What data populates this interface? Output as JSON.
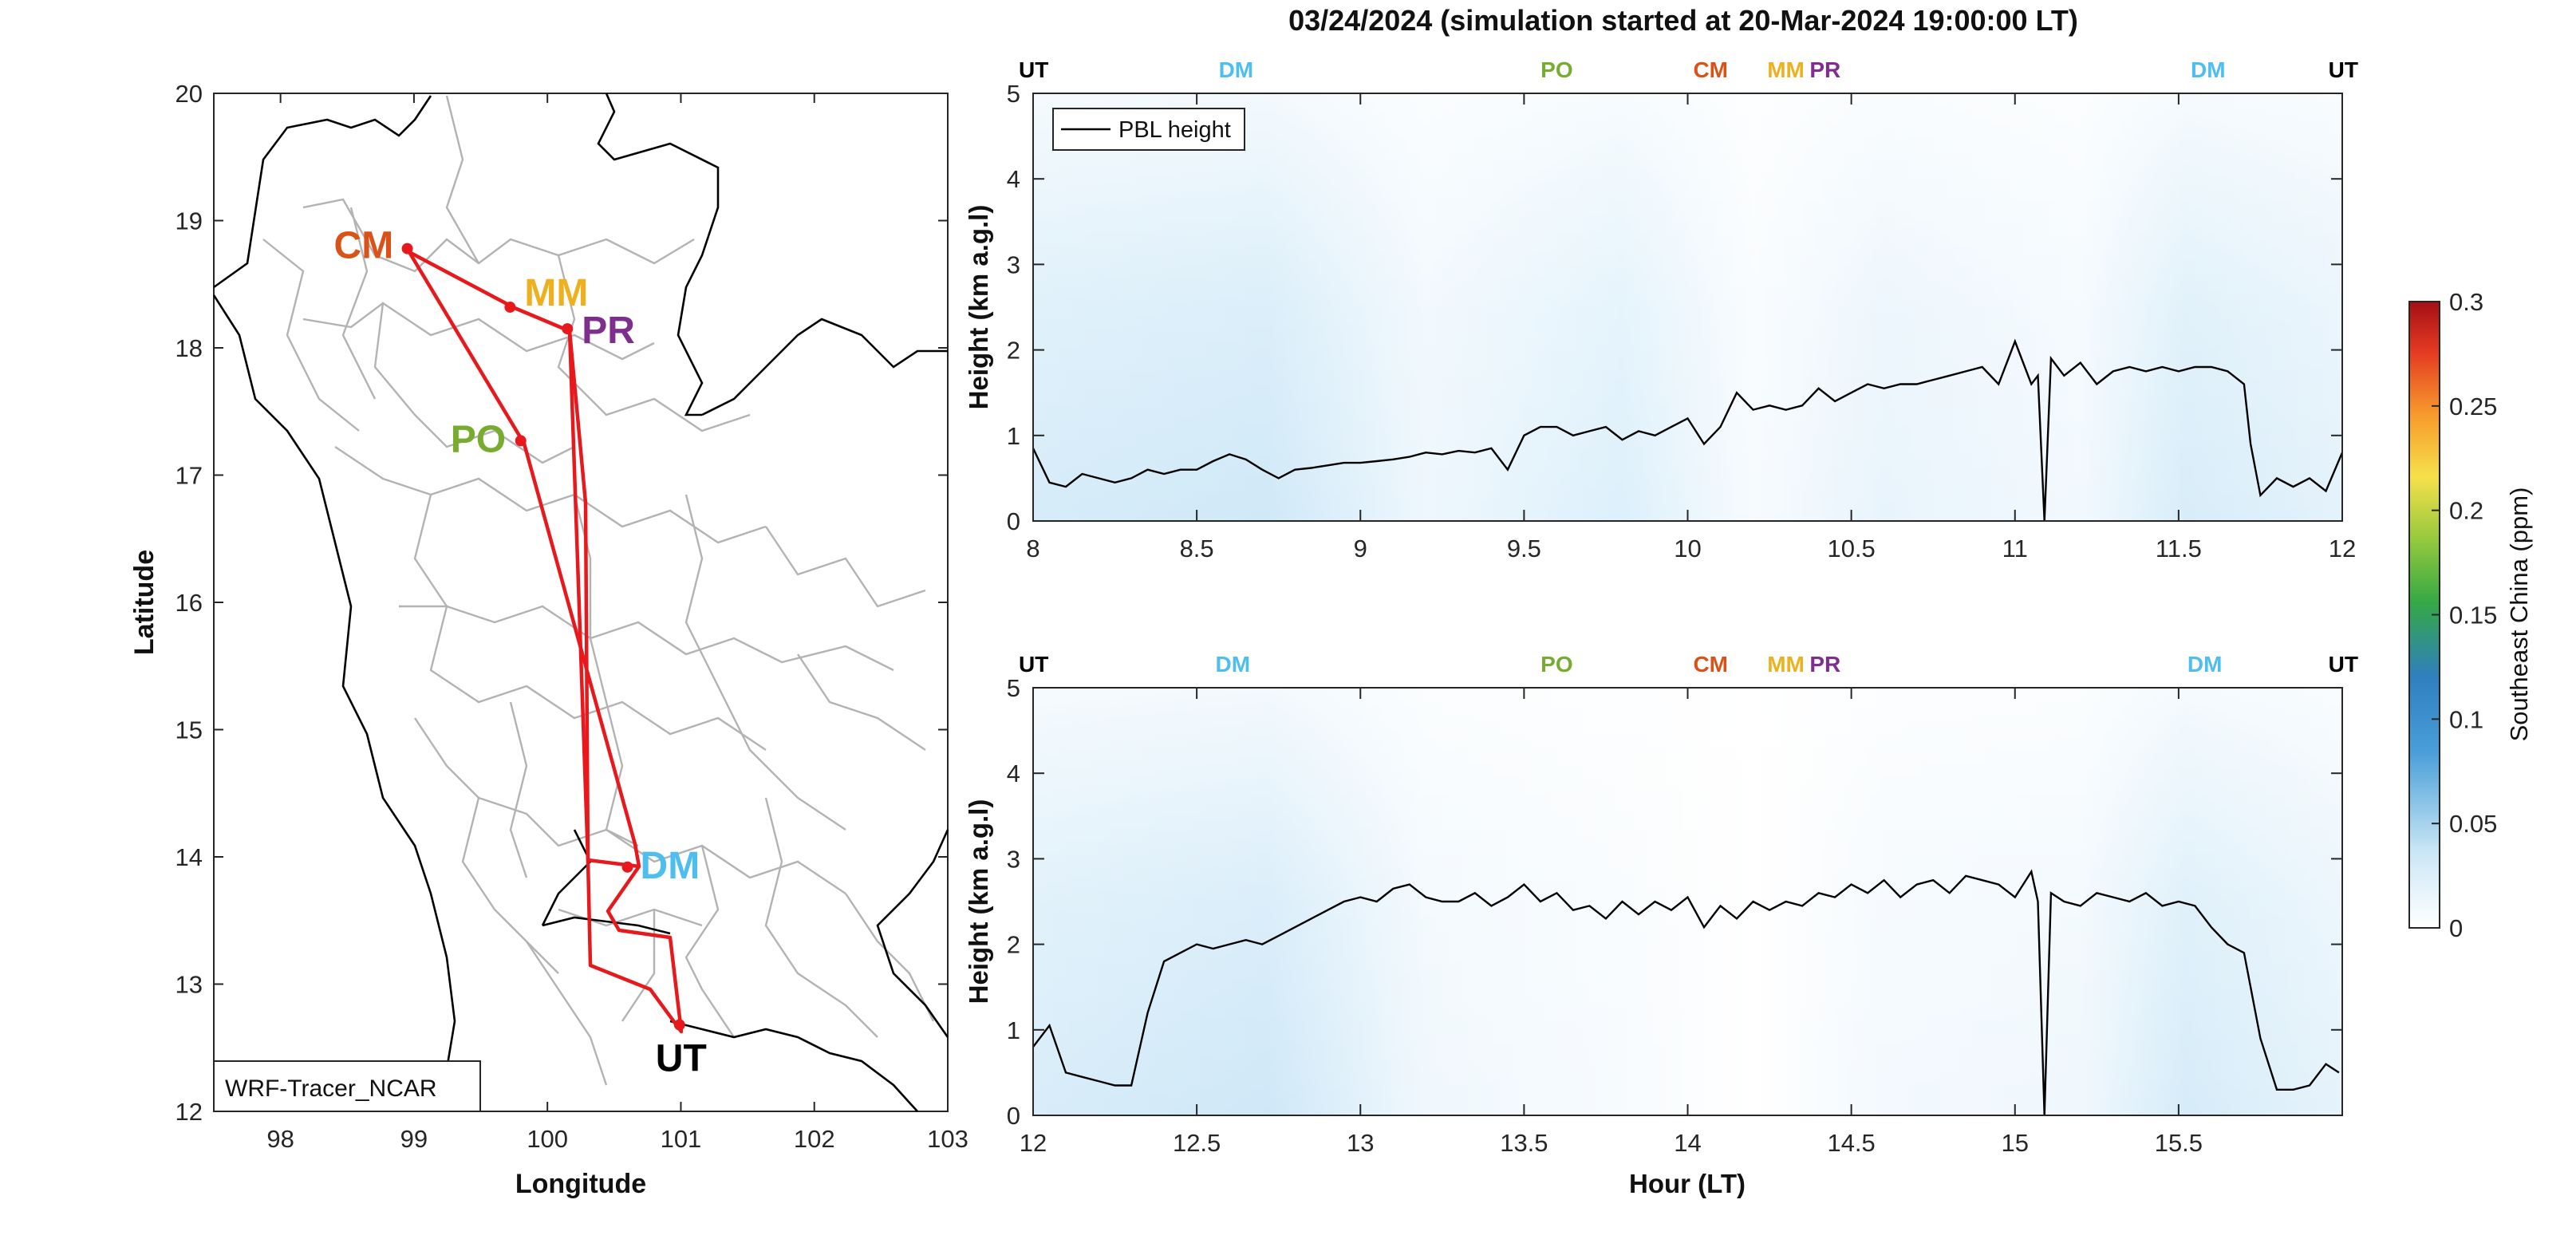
{
  "figure": {
    "title": "03/24/2024 (simulation started at 20-Mar-2024 19:00:00 LT)"
  },
  "map": {
    "xlabel": "Longitude",
    "ylabel": "Latitude",
    "xticks": [
      "98",
      "99",
      "100",
      "101",
      "102",
      "103"
    ],
    "yticks": [
      "12",
      "13",
      "14",
      "15",
      "16",
      "17",
      "18",
      "19",
      "20"
    ],
    "model_label": "WRF-Tracer_NCAR",
    "route_color": "#e8191c",
    "border_color": "#000000",
    "province_color": "#b3b3b3",
    "sites": [
      {
        "code": "CM",
        "lon": 98.95,
        "lat": 18.78,
        "color": "#d95319"
      },
      {
        "code": "MM",
        "lon": 99.72,
        "lat": 18.32,
        "color": "#edb120"
      },
      {
        "code": "PR",
        "lon": 100.15,
        "lat": 18.15,
        "color": "#7e2f8e"
      },
      {
        "code": "PO",
        "lon": 99.8,
        "lat": 17.27,
        "color": "#77ac30"
      },
      {
        "code": "DM",
        "lon": 100.6,
        "lat": 13.92,
        "color": "#4dbeee"
      },
      {
        "code": "UT",
        "lon": 100.99,
        "lat": 12.68,
        "color": "#000000"
      }
    ]
  },
  "panels": [
    {
      "xticks": [
        "8",
        "8.5",
        "9",
        "9.5",
        "10",
        "10.5",
        "11",
        "11.5",
        "12"
      ],
      "yticks": [
        "0",
        "1",
        "2",
        "3",
        "4",
        "5"
      ],
      "ylabel": "Height (km a.g.l)",
      "xlabel": "",
      "legend": "PBL height",
      "site_markers": [
        {
          "code": "UT",
          "hour": 8.0,
          "color": "#000000"
        },
        {
          "code": "DM",
          "hour": 8.62,
          "color": "#4dbeee"
        },
        {
          "code": "PO",
          "hour": 9.6,
          "color": "#77ac30"
        },
        {
          "code": "CM",
          "hour": 10.07,
          "color": "#d95319"
        },
        {
          "code": "MM",
          "hour": 10.3,
          "color": "#edb120"
        },
        {
          "code": "PR",
          "hour": 10.42,
          "color": "#7e2f8e"
        },
        {
          "code": "DM",
          "hour": 11.59,
          "color": "#4dbeee"
        },
        {
          "code": "UT",
          "hour": 11.96,
          "color": "#000000"
        }
      ]
    },
    {
      "xticks": [
        "12",
        "12.5",
        "13",
        "13.5",
        "14",
        "14.5",
        "15",
        "15.5"
      ],
      "yticks": [
        "0",
        "1",
        "2",
        "3",
        "4",
        "5"
      ],
      "ylabel": "Height (km a.g.l)",
      "xlabel": "Hour (LT)",
      "legend": "",
      "site_markers": [
        {
          "code": "UT",
          "hour": 12.0,
          "color": "#000000"
        },
        {
          "code": "DM",
          "hour": 12.61,
          "color": "#4dbeee"
        },
        {
          "code": "PO",
          "hour": 13.6,
          "color": "#77ac30"
        },
        {
          "code": "CM",
          "hour": 14.07,
          "color": "#d95319"
        },
        {
          "code": "MM",
          "hour": 14.3,
          "color": "#edb120"
        },
        {
          "code": "PR",
          "hour": 14.42,
          "color": "#7e2f8e"
        },
        {
          "code": "DM",
          "hour": 15.58,
          "color": "#4dbeee"
        },
        {
          "code": "UT",
          "hour": 15.96,
          "color": "#000000"
        }
      ]
    }
  ],
  "colorbar": {
    "label": "Southeast China (ppm)",
    "ticks": [
      "0",
      "0.05",
      "0.1",
      "0.15",
      "0.2",
      "0.25",
      "0.3"
    ]
  },
  "chart_data": [
    {
      "type": "line",
      "series": [
        {
          "name": "PBL height",
          "x": [
            8.0,
            8.05,
            8.1,
            8.15,
            8.2,
            8.25,
            8.3,
            8.35,
            8.4,
            8.45,
            8.5,
            8.55,
            8.6,
            8.65,
            8.7,
            8.75,
            8.8,
            8.85,
            8.9,
            8.95,
            9.0,
            9.05,
            9.1,
            9.15,
            9.2,
            9.25,
            9.3,
            9.35,
            9.4,
            9.45,
            9.5,
            9.55,
            9.6,
            9.65,
            9.7,
            9.75,
            9.8,
            9.85,
            9.9,
            9.95,
            10.0,
            10.05,
            10.1,
            10.15,
            10.2,
            10.25,
            10.3,
            10.35,
            10.4,
            10.45,
            10.5,
            10.55,
            10.6,
            10.65,
            10.7,
            10.75,
            10.8,
            10.85,
            10.9,
            10.95,
            11.0,
            11.05,
            11.07,
            11.09,
            11.11,
            11.15,
            11.2,
            11.25,
            11.3,
            11.35,
            11.4,
            11.45,
            11.5,
            11.55,
            11.6,
            11.65,
            11.7,
            11.72,
            11.75,
            11.8,
            11.85,
            11.9,
            11.95,
            12.0
          ],
          "y": [
            0.85,
            0.45,
            0.4,
            0.55,
            0.5,
            0.45,
            0.5,
            0.6,
            0.55,
            0.6,
            0.6,
            0.7,
            0.78,
            0.72,
            0.6,
            0.5,
            0.6,
            0.62,
            0.65,
            0.68,
            0.68,
            0.7,
            0.72,
            0.75,
            0.8,
            0.78,
            0.82,
            0.8,
            0.85,
            0.6,
            1.0,
            1.1,
            1.1,
            1.0,
            1.05,
            1.1,
            0.95,
            1.05,
            1.0,
            1.1,
            1.2,
            0.9,
            1.1,
            1.5,
            1.3,
            1.35,
            1.3,
            1.35,
            1.55,
            1.4,
            1.5,
            1.6,
            1.55,
            1.6,
            1.6,
            1.65,
            1.7,
            1.75,
            1.8,
            1.6,
            2.1,
            1.6,
            1.7,
            0.0,
            1.9,
            1.7,
            1.85,
            1.6,
            1.75,
            1.8,
            1.75,
            1.8,
            1.75,
            1.8,
            1.8,
            1.75,
            1.6,
            0.9,
            0.3,
            0.5,
            0.4,
            0.5,
            0.35,
            0.8
          ]
        }
      ],
      "xlim": [
        8,
        12
      ],
      "ylim": [
        0,
        5
      ],
      "xlabel": "",
      "ylabel": "Height (km a.g.l)",
      "legend_placement": "top-left"
    },
    {
      "type": "line",
      "series": [
        {
          "name": "PBL height",
          "x": [
            12.0,
            12.05,
            12.1,
            12.15,
            12.2,
            12.25,
            12.3,
            12.35,
            12.4,
            12.45,
            12.5,
            12.55,
            12.6,
            12.65,
            12.7,
            12.75,
            12.8,
            12.85,
            12.9,
            12.95,
            13.0,
            13.05,
            13.1,
            13.15,
            13.2,
            13.25,
            13.3,
            13.35,
            13.4,
            13.45,
            13.5,
            13.55,
            13.6,
            13.65,
            13.7,
            13.75,
            13.8,
            13.85,
            13.9,
            13.95,
            14.0,
            14.05,
            14.1,
            14.15,
            14.2,
            14.25,
            14.3,
            14.35,
            14.4,
            14.45,
            14.5,
            14.55,
            14.6,
            14.65,
            14.7,
            14.75,
            14.8,
            14.85,
            14.9,
            14.95,
            15.0,
            15.05,
            15.07,
            15.09,
            15.11,
            15.15,
            15.2,
            15.25,
            15.3,
            15.35,
            15.4,
            15.45,
            15.5,
            15.55,
            15.6,
            15.65,
            15.7,
            15.72,
            15.75,
            15.8,
            15.85,
            15.9,
            15.95,
            15.99
          ],
          "y": [
            0.8,
            1.05,
            0.5,
            0.45,
            0.4,
            0.35,
            0.35,
            1.2,
            1.8,
            1.9,
            2.0,
            1.95,
            2.0,
            2.05,
            2.0,
            2.1,
            2.2,
            2.3,
            2.4,
            2.5,
            2.55,
            2.5,
            2.65,
            2.7,
            2.55,
            2.5,
            2.5,
            2.6,
            2.45,
            2.55,
            2.7,
            2.5,
            2.6,
            2.4,
            2.45,
            2.3,
            2.5,
            2.35,
            2.5,
            2.4,
            2.55,
            2.2,
            2.45,
            2.3,
            2.5,
            2.4,
            2.5,
            2.45,
            2.6,
            2.55,
            2.7,
            2.6,
            2.75,
            2.55,
            2.7,
            2.75,
            2.6,
            2.8,
            2.75,
            2.7,
            2.55,
            2.85,
            2.5,
            0.0,
            2.6,
            2.5,
            2.45,
            2.6,
            2.55,
            2.5,
            2.6,
            2.45,
            2.5,
            2.45,
            2.2,
            2.0,
            1.9,
            1.5,
            0.9,
            0.3,
            0.3,
            0.35,
            0.6,
            0.5
          ]
        }
      ],
      "xlim": [
        12,
        16
      ],
      "ylim": [
        0,
        5
      ],
      "xlabel": "Hour (LT)",
      "ylabel": "Height (km a.g.l)",
      "legend_placement": "none"
    }
  ]
}
